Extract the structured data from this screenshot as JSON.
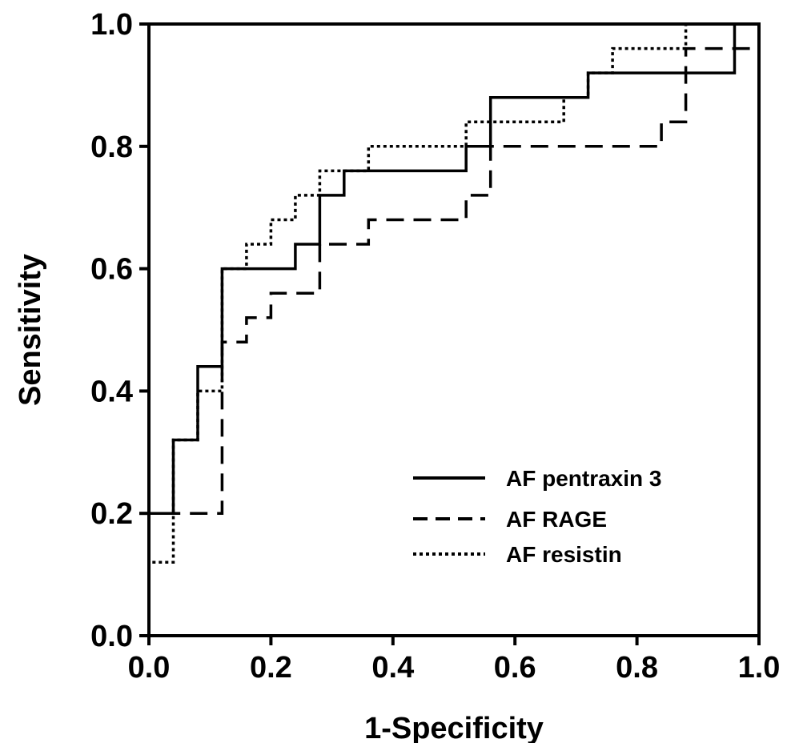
{
  "chart_data": {
    "type": "line",
    "title": "",
    "xlabel": "1-Specificity",
    "ylabel": "Sensitivity",
    "xlim": [
      0,
      1
    ],
    "ylim": [
      0,
      1
    ],
    "x_ticks": [
      "0.0",
      "0.2",
      "0.4",
      "0.6",
      "0.8",
      "1.0"
    ],
    "y_ticks": [
      "0.0",
      "0.2",
      "0.4",
      "0.6",
      "0.8",
      "1.0"
    ],
    "grid": false,
    "legend_position": "bottom-right",
    "series": [
      {
        "name": "AF pentraxin 3",
        "style": "solid",
        "x": [
          0.0,
          0.0,
          0.04,
          0.04,
          0.08,
          0.08,
          0.12,
          0.12,
          0.24,
          0.24,
          0.28,
          0.28,
          0.32,
          0.32,
          0.52,
          0.52,
          0.56,
          0.56,
          0.72,
          0.72,
          0.96,
          0.96,
          1.0
        ],
        "y": [
          0.0,
          0.2,
          0.2,
          0.32,
          0.32,
          0.44,
          0.44,
          0.6,
          0.6,
          0.64,
          0.64,
          0.72,
          0.72,
          0.76,
          0.76,
          0.8,
          0.8,
          0.88,
          0.88,
          0.92,
          0.92,
          1.0,
          1.0
        ]
      },
      {
        "name": "AF RAGE",
        "style": "dashed",
        "x": [
          0.0,
          0.0,
          0.12,
          0.12,
          0.16,
          0.16,
          0.2,
          0.2,
          0.24,
          0.28,
          0.28,
          0.36,
          0.36,
          0.52,
          0.52,
          0.56,
          0.56,
          0.84,
          0.84,
          0.88,
          0.88,
          1.0
        ],
        "y": [
          0.0,
          0.2,
          0.2,
          0.48,
          0.48,
          0.52,
          0.52,
          0.56,
          0.56,
          0.56,
          0.64,
          0.64,
          0.68,
          0.68,
          0.72,
          0.72,
          0.8,
          0.8,
          0.84,
          0.84,
          0.96,
          0.96
        ]
      },
      {
        "name": "AF resistin",
        "style": "dotted",
        "x": [
          0.0,
          0.0,
          0.04,
          0.04,
          0.08,
          0.08,
          0.12,
          0.12,
          0.16,
          0.16,
          0.2,
          0.2,
          0.24,
          0.24,
          0.28,
          0.28,
          0.36,
          0.36,
          0.52,
          0.52,
          0.68,
          0.68,
          0.72,
          0.72,
          0.76,
          0.76,
          0.88,
          0.88,
          1.0
        ],
        "y": [
          0.0,
          0.12,
          0.12,
          0.32,
          0.32,
          0.4,
          0.4,
          0.6,
          0.6,
          0.64,
          0.64,
          0.68,
          0.68,
          0.72,
          0.72,
          0.76,
          0.76,
          0.8,
          0.8,
          0.84,
          0.84,
          0.88,
          0.88,
          0.92,
          0.92,
          0.96,
          0.96,
          1.0,
          1.0
        ]
      }
    ]
  }
}
